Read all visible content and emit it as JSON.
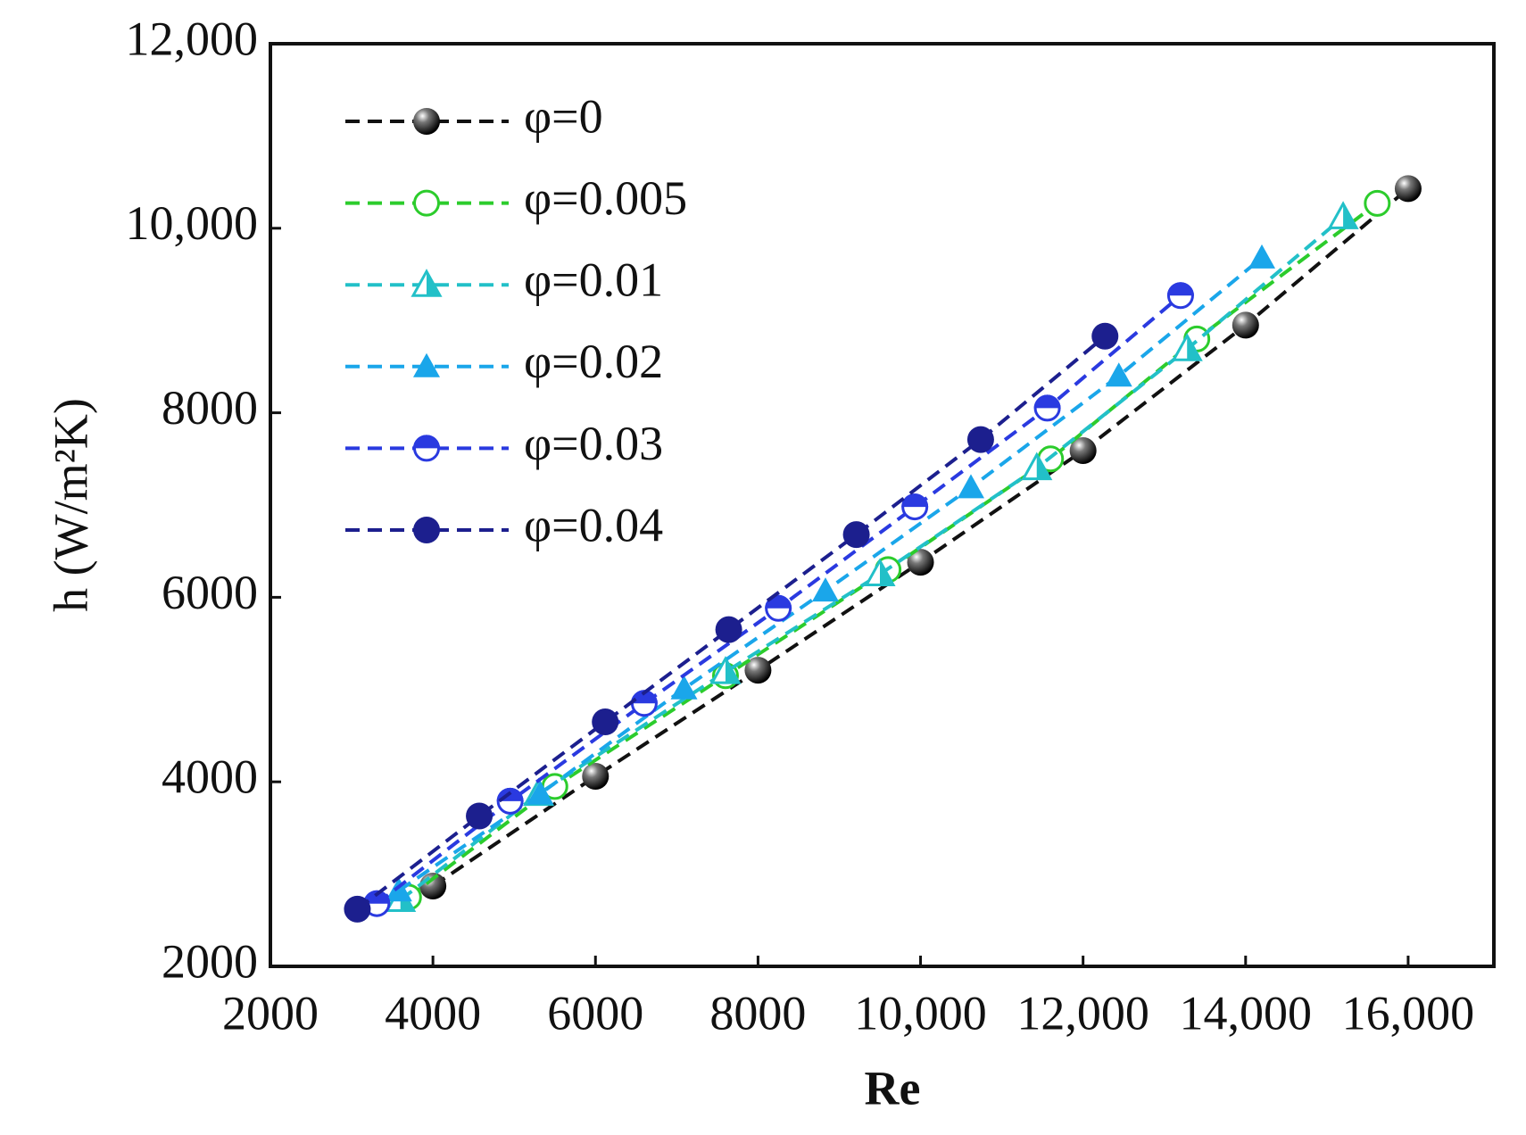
{
  "chart_data": {
    "type": "line",
    "xlabel": "Re",
    "ylabel": "h (W/m²K)",
    "xlim": [
      2000,
      17000
    ],
    "ylim": [
      2000,
      12000
    ],
    "xticks": [
      2000,
      4000,
      6000,
      8000,
      {
        "value": 10000,
        "label": "10,000"
      },
      {
        "value": 12000,
        "label": "12,000"
      },
      {
        "value": 14000,
        "label": "14,000"
      },
      {
        "value": 16000,
        "label": "16,000"
      }
    ],
    "yticks": [
      2000,
      4000,
      6000,
      8000,
      {
        "value": 10000,
        "label": "10,000"
      },
      {
        "value": 12000,
        "label": "12,000"
      }
    ],
    "grid": false,
    "legend": "upper left",
    "line_style": "dashed",
    "series": [
      {
        "name": "φ=0",
        "color": "#111111",
        "marker": "sphere",
        "x": [
          4000,
          6000,
          8000,
          10000,
          12000,
          14000,
          16000
        ],
        "values": [
          2870,
          4060,
          5210,
          6380,
          7590,
          8950,
          10430
        ]
      },
      {
        "name": "φ=0.005",
        "color": "#2ccc2c",
        "marker": "circle-open",
        "x": [
          3700,
          5500,
          7600,
          9600,
          11600,
          13400,
          15620
        ],
        "values": [
          2750,
          3950,
          5150,
          6300,
          7500,
          8800,
          10270
        ]
      },
      {
        "name": "φ=0.01",
        "color": "#22c0c8",
        "marker": "triangle-half",
        "x": [
          3600,
          5300,
          7600,
          9500,
          11430,
          13280,
          15200
        ],
        "values": [
          2720,
          3870,
          5190,
          6250,
          7400,
          8690,
          10120
        ]
      },
      {
        "name": "φ=0.02",
        "color": "#1aa6ea",
        "marker": "triangle",
        "x": [
          3580,
          5320,
          7090,
          8830,
          10620,
          12440,
          14200
        ],
        "values": [
          2820,
          3870,
          5010,
          6070,
          7190,
          8400,
          9680
        ]
      },
      {
        "name": "φ=0.03",
        "color": "#2a3ae0",
        "marker": "circle-half",
        "x": [
          3310,
          4950,
          6600,
          8250,
          9930,
          11560,
          13200
        ],
        "values": [
          2680,
          3790,
          4850,
          5880,
          6980,
          8050,
          9270
        ]
      },
      {
        "name": "φ=0.04",
        "color": "#1c1f8e",
        "marker": "circle",
        "x": [
          3070,
          4570,
          6120,
          7640,
          9210,
          10740,
          12270
        ],
        "values": [
          2620,
          3630,
          4650,
          5650,
          6680,
          7710,
          8830
        ]
      }
    ]
  }
}
